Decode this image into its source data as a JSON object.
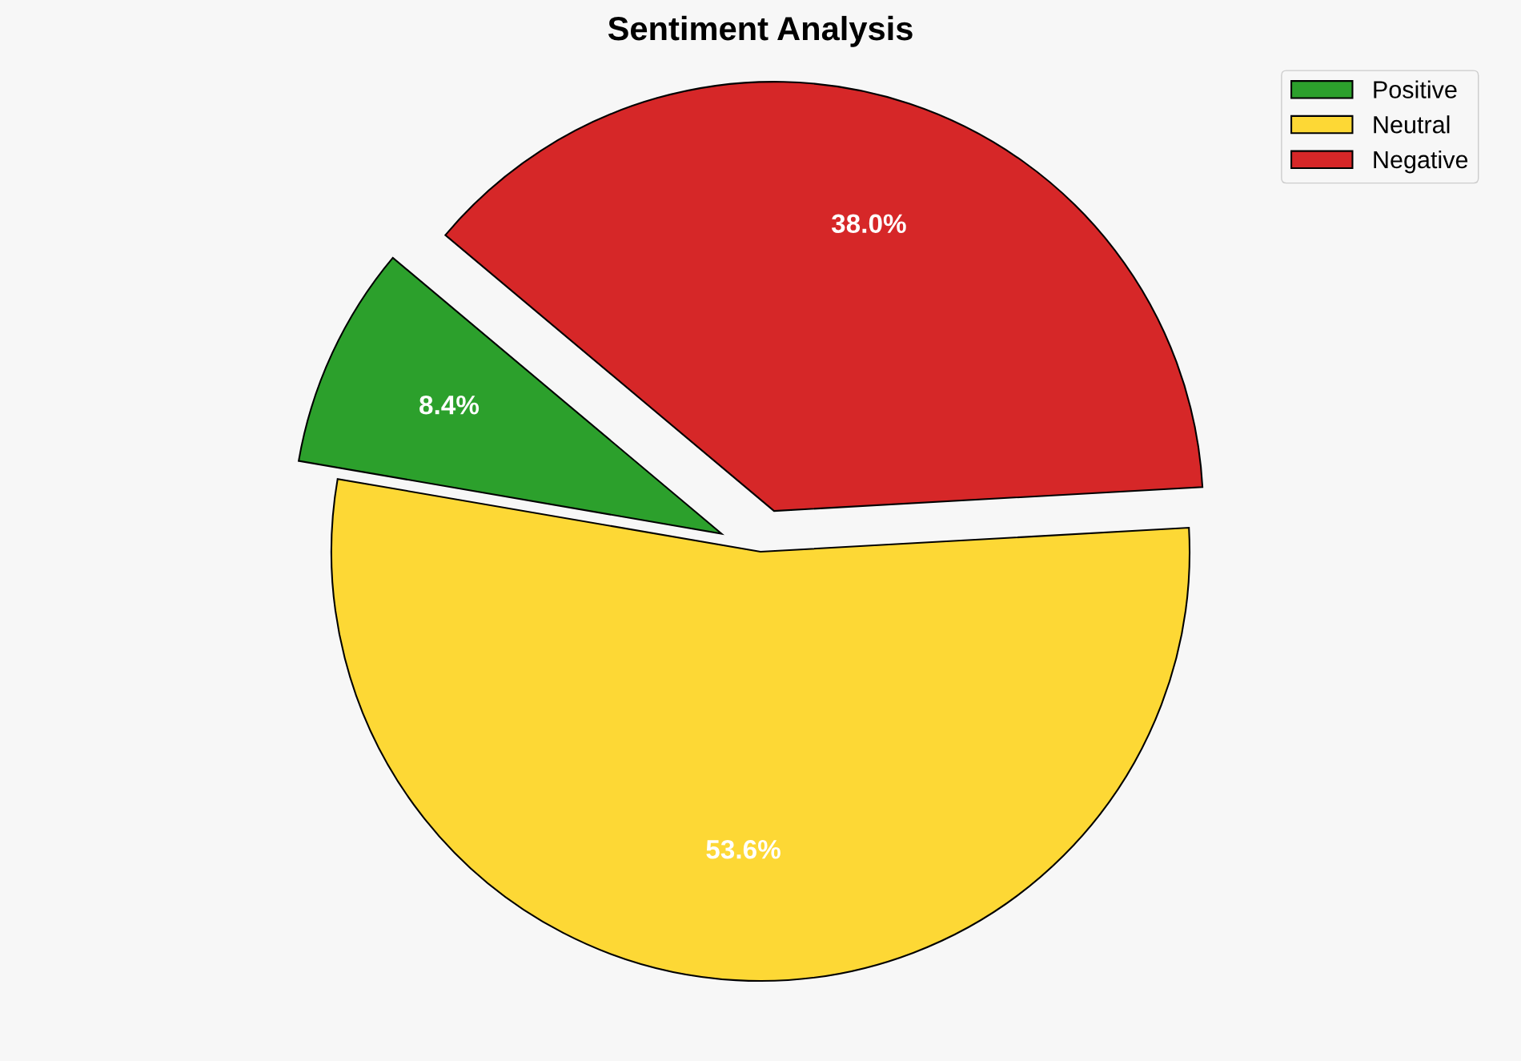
{
  "chart_data": {
    "type": "pie",
    "title": "Sentiment Analysis",
    "categories": [
      "Positive",
      "Neutral",
      "Negative"
    ],
    "values": [
      8.4,
      53.6,
      38.0
    ],
    "value_labels": [
      "8.4%",
      "53.6%",
      "38.0%"
    ],
    "colors": [
      "#2ca02c",
      "#fdd835",
      "#d62728"
    ],
    "legend": "top right"
  }
}
